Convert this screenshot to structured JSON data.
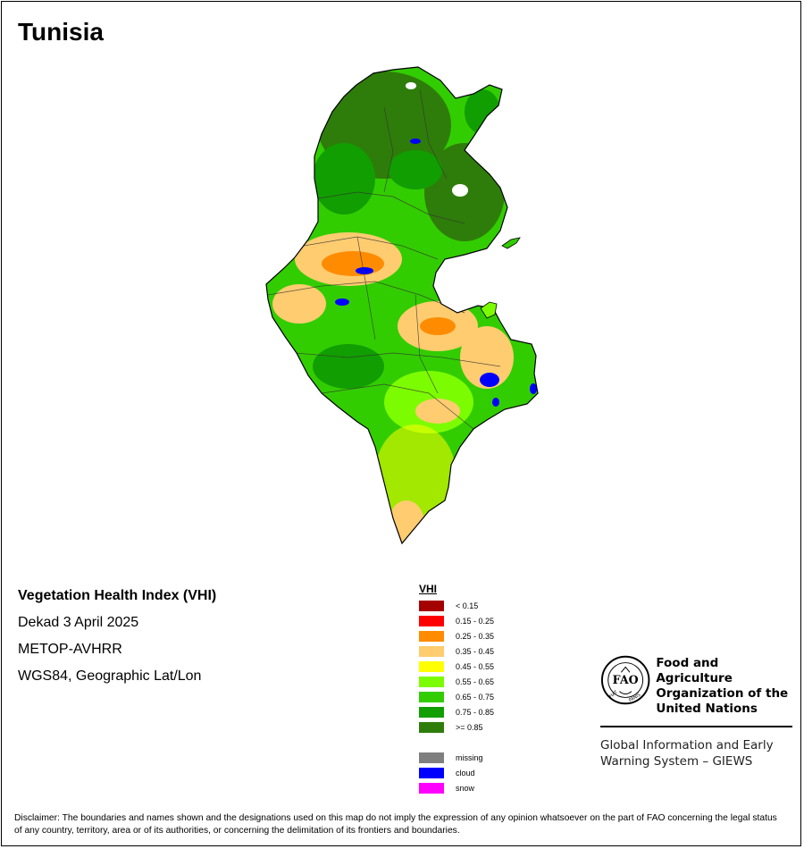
{
  "title": "Tunisia",
  "info": {
    "index_name": "Vegetation Health Index (VHI)",
    "period": "Dekad 3 April 2025",
    "sensor": "METOP-AVHRR",
    "projection": "WGS84, Geographic Lat/Lon"
  },
  "legend": {
    "title": "VHI",
    "classes": [
      {
        "label": "< 0.15",
        "color": "#a50000"
      },
      {
        "label": "0.15 - 0.25",
        "color": "#ff0000"
      },
      {
        "label": "0.25 - 0.35",
        "color": "#ff8c00"
      },
      {
        "label": "0.35 - 0.45",
        "color": "#ffcc70"
      },
      {
        "label": "0.45 - 0.55",
        "color": "#ffff00"
      },
      {
        "label": "0.55 - 0.65",
        "color": "#7cfc00"
      },
      {
        "label": "0.65 - 0.75",
        "color": "#32cd00"
      },
      {
        "label": "0.75 - 0.85",
        "color": "#119e00"
      },
      {
        "label": ">= 0.85",
        "color": "#2e7d0a"
      }
    ],
    "special": [
      {
        "label": "missing",
        "color": "#7f7f7f"
      },
      {
        "label": "cloud",
        "color": "#0000ff"
      },
      {
        "label": "snow",
        "color": "#ff00ff"
      }
    ]
  },
  "organization": {
    "name_line1": "Food and Agriculture",
    "name_line2": "Organization of the",
    "name_line3": "United Nations",
    "logo_text": "FAO",
    "motto_left": "FIAT",
    "motto_right": "PANIS",
    "system_line1": "Global Information and Early",
    "system_line2": "Warning System – GIEWS"
  },
  "disclaimer": "Disclaimer: The boundaries and names shown and the designations used on this map do not imply the expression of any opinion whatsoever on the part of FAO concerning the legal status of any country, territory, area or of its authorities, or concerning the delimitation of its frontiers and boundaries."
}
